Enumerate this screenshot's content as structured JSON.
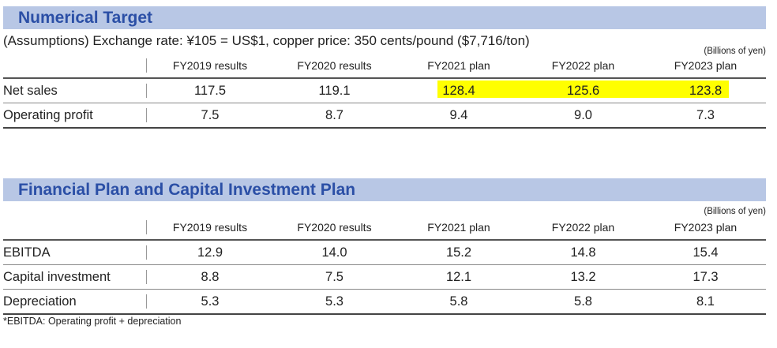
{
  "numerical_target": {
    "title": "Numerical Target",
    "assumptions": "(Assumptions) Exchange rate: ¥105 = US$1, copper price: 350 cents/pound ($7,716/ton)",
    "unit": "(Billions of yen)",
    "columns": [
      "FY2019 results",
      "FY2020 results",
      "FY2021 plan",
      "FY2022 plan",
      "FY2023 plan"
    ],
    "rows": [
      {
        "label": "Net sales",
        "values": [
          "117.5",
          "119.1",
          "128.4",
          "125.6",
          "123.8"
        ]
      },
      {
        "label": "Operating profit",
        "values": [
          "7.5",
          "8.7",
          "9.4",
          "9.0",
          "7.3"
        ]
      }
    ],
    "highlight_color": "#ffff00"
  },
  "financial_plan": {
    "title": "Financial Plan and Capital Investment Plan",
    "unit": "(Billions of yen)",
    "columns": [
      "FY2019 results",
      "FY2020 results",
      "FY2021 plan",
      "FY2022 plan",
      "FY2023 plan"
    ],
    "rows": [
      {
        "label": "EBITDA",
        "values": [
          "12.9",
          "14.0",
          "15.2",
          "14.8",
          "15.4"
        ]
      },
      {
        "label": "Capital investment",
        "values": [
          "8.8",
          "7.5",
          "12.1",
          "13.2",
          "17.3"
        ]
      },
      {
        "label": "Depreciation",
        "values": [
          "5.3",
          "5.3",
          "5.8",
          "5.8",
          "8.1"
        ]
      }
    ],
    "footnote": "*EBITDA: Operating profit + depreciation"
  },
  "colors": {
    "band": "#b8c7e5",
    "title": "#2b4fa6"
  }
}
